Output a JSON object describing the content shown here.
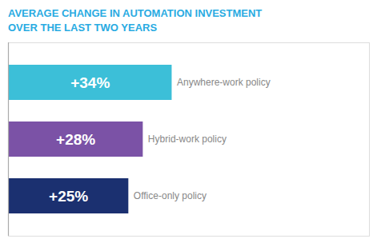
{
  "chart_data": {
    "type": "bar",
    "orientation": "horizontal",
    "title": "AVERAGE CHANGE IN AUTOMATION INVESTMENT",
    "subtitle": "OVER THE LAST TWO YEARS",
    "categories": [
      "Anywhere-work policy",
      "Hybrid-work policy",
      "Office-only policy"
    ],
    "values": [
      34,
      28,
      25
    ],
    "value_labels": [
      "+34%",
      "+28%",
      "+25%"
    ],
    "data_labels": true,
    "colors": [
      "#3CBFD8",
      "#7B52A6",
      "#1B3070"
    ],
    "xlim": [
      0,
      75
    ],
    "tick_labels": false,
    "grid": false
  }
}
